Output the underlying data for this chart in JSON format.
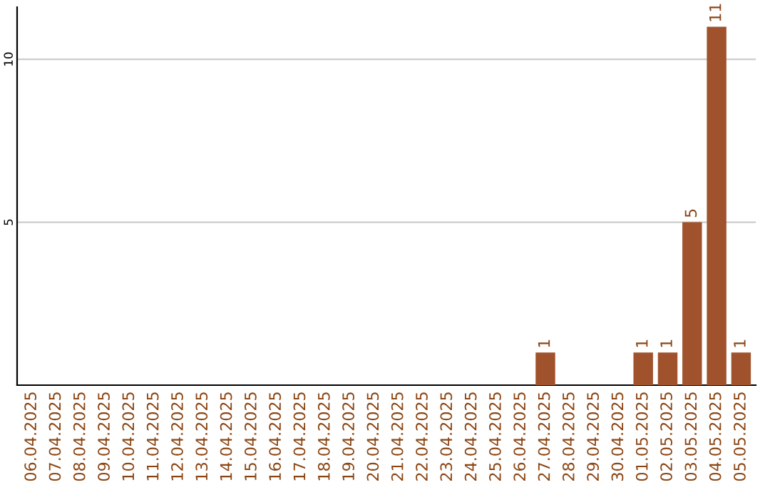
{
  "chart_data": {
    "type": "bar",
    "categories": [
      "06.04.2025",
      "07.04.2025",
      "08.04.2025",
      "09.04.2025",
      "10.04.2025",
      "11.04.2025",
      "12.04.2025",
      "13.04.2025",
      "14.04.2025",
      "15.04.2025",
      "16.04.2025",
      "17.04.2025",
      "18.04.2025",
      "19.04.2025",
      "20.04.2025",
      "21.04.2025",
      "22.04.2025",
      "23.04.2025",
      "24.04.2025",
      "25.04.2025",
      "26.04.2025",
      "27.04.2025",
      "28.04.2025",
      "29.04.2025",
      "30.04.2025",
      "01.05.2025",
      "02.05.2025",
      "03.05.2025",
      "04.05.2025",
      "05.05.2025"
    ],
    "values": [
      0,
      0,
      0,
      0,
      0,
      0,
      0,
      0,
      0,
      0,
      0,
      0,
      0,
      0,
      0,
      0,
      0,
      0,
      0,
      0,
      0,
      1,
      0,
      0,
      0,
      1,
      1,
      5,
      11,
      1
    ],
    "value_labels": [
      null,
      null,
      null,
      null,
      null,
      null,
      null,
      null,
      null,
      null,
      null,
      null,
      null,
      null,
      null,
      null,
      null,
      null,
      null,
      null,
      null,
      "1",
      null,
      null,
      null,
      "1",
      "1",
      "5",
      "11",
      "1"
    ],
    "color": "#a0522d",
    "ylim": [
      0,
      11.6
    ],
    "yticks": [
      5,
      10
    ],
    "grid": "y"
  }
}
